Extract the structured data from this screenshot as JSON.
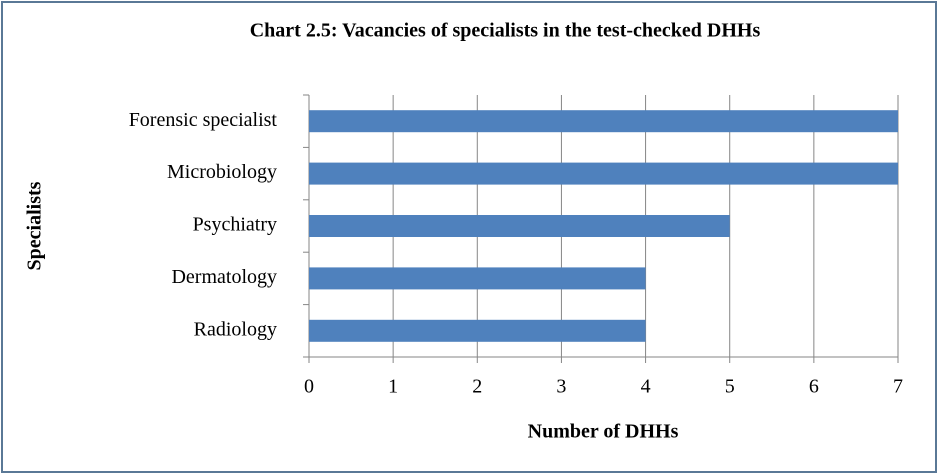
{
  "chart_data": {
    "type": "hbar",
    "title": "Chart 2.5: Vacancies of specialists in the test-checked DHHs",
    "categories": [
      "Forensic specialist",
      "Microbiology",
      "Psychiatry",
      "Dermatology",
      "Radiology"
    ],
    "values": [
      7,
      7,
      5,
      4,
      4
    ],
    "color": "#4f81bd",
    "xlabel": "Number of DHHs",
    "ylabel": "Specialists",
    "xlim": [
      0,
      7
    ],
    "xticks": [
      0,
      1,
      2,
      3,
      4,
      5,
      6,
      7
    ],
    "grid": true
  }
}
